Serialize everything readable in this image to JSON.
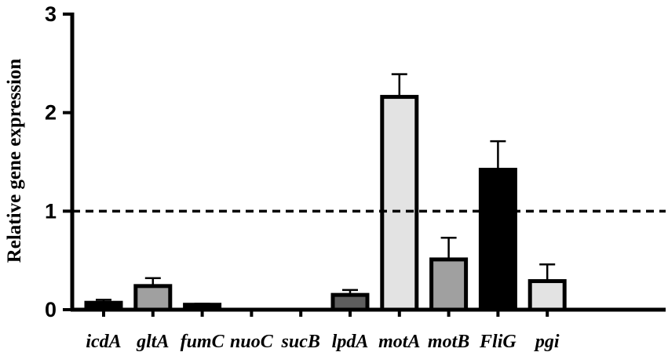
{
  "chart_data": {
    "type": "bar",
    "title": "",
    "xlabel": "",
    "ylabel": "Relative gene expression",
    "ylim": [
      0,
      3
    ],
    "yticks": [
      0,
      1,
      2,
      3
    ],
    "ytick_labels": [
      "0",
      "1",
      "2",
      "3"
    ],
    "grid": false,
    "legend": "none",
    "reference_line": {
      "y": 1,
      "style": "dashed",
      "color": "#000000"
    },
    "categories": [
      "icdA",
      "gltA",
      "fumC",
      "nuoC",
      "sucB",
      "lpdA",
      "motA",
      "motB",
      "FliG",
      "pgi"
    ],
    "values": [
      0.07,
      0.24,
      0.05,
      0.0,
      0.0,
      0.15,
      2.16,
      0.51,
      1.42,
      0.29
    ],
    "errors": [
      0.03,
      0.08,
      0.01,
      0.0,
      0.0,
      0.05,
      0.23,
      0.22,
      0.29,
      0.17
    ],
    "fill_colors": [
      "#000000",
      "#a0a0a0",
      "#000000",
      "#ffffff",
      "#ffffff",
      "#5e5e5e",
      "#e3e3e3",
      "#a0a0a0",
      "#000000",
      "#e3e3e3"
    ],
    "edge_color": "#000000"
  }
}
